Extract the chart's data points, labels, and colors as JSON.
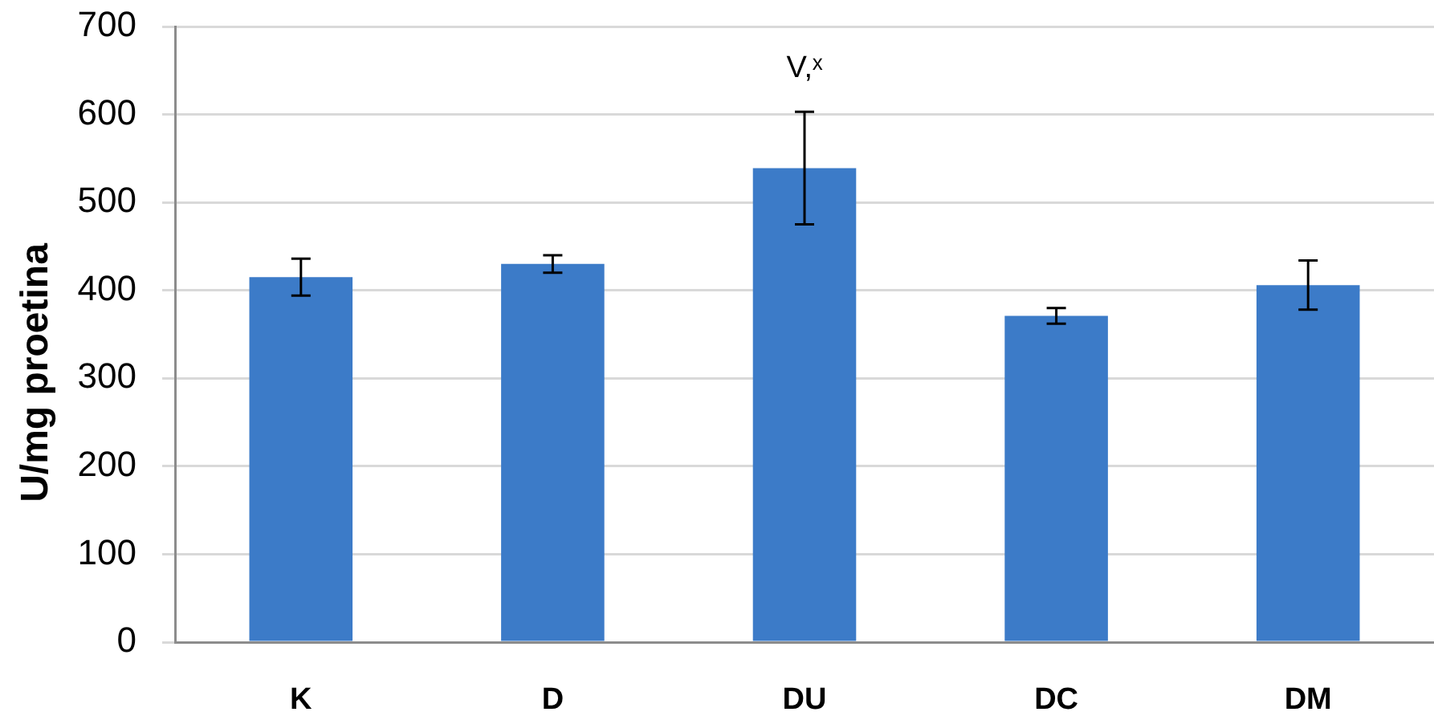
{
  "chart_data": {
    "type": "bar",
    "ylabel": "U/mg proetina",
    "categories": [
      "K",
      "D",
      "DU",
      "DC",
      "DM"
    ],
    "values": [
      415,
      430,
      539,
      371,
      406
    ],
    "errors": [
      21,
      10,
      64,
      9,
      28
    ],
    "color": "#3c7bc8",
    "ylim": [
      0,
      700
    ],
    "yticks": [
      0,
      100,
      200,
      300,
      400,
      500,
      600,
      700
    ],
    "grid": "y",
    "legend": false,
    "annotations": [
      {
        "text": "V,ˣ",
        "x": "DU",
        "y": 604
      }
    ]
  }
}
